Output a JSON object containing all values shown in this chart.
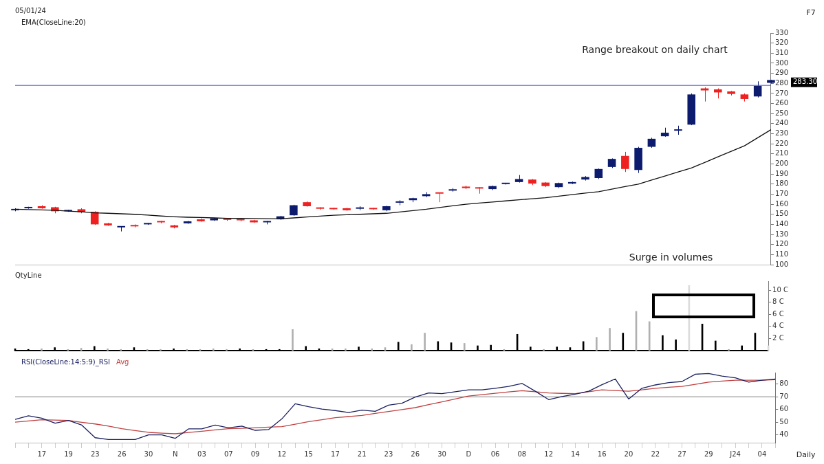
{
  "chart_data": [
    {
      "type": "candlestick",
      "title": "05/01/24",
      "legend": "top left",
      "tick_labels": "y",
      "categories": [
        null,
        null,
        null,
        null,
        null,
        null,
        null,
        null,
        null,
        null,
        null,
        null,
        null,
        null,
        null,
        null,
        null,
        null,
        null,
        null,
        null,
        null,
        null,
        null,
        null,
        null,
        null,
        null,
        null,
        null,
        null,
        null,
        null,
        null,
        null,
        null,
        null,
        null,
        null,
        null,
        null,
        null,
        null,
        null,
        null,
        null,
        null,
        null,
        null,
        null,
        null,
        null,
        null,
        null,
        null,
        null,
        null,
        null
      ],
      "ohlc": [
        [
          154,
          156,
          153,
          155
        ],
        [
          156,
          157.5,
          155.5,
          157
        ],
        [
          158,
          159,
          155.5,
          156
        ],
        [
          157,
          157.5,
          151,
          153
        ],
        [
          153,
          154.5,
          152.5,
          154
        ],
        [
          155,
          156,
          151,
          152
        ],
        [
          152.5,
          153,
          139.5,
          140
        ],
        [
          141,
          141.5,
          138.5,
          139
        ],
        [
          137,
          138,
          133,
          137.5
        ],
        [
          139,
          140,
          137,
          138
        ],
        [
          140,
          141.5,
          139.5,
          141
        ],
        [
          143,
          143.5,
          141,
          142
        ],
        [
          139,
          139.5,
          136,
          137
        ],
        [
          141,
          143.5,
          140.5,
          143
        ],
        [
          145,
          146,
          142.5,
          143
        ],
        [
          144,
          146.5,
          143.5,
          146
        ],
        [
          145,
          145.5,
          143.5,
          144.5
        ],
        [
          145,
          146,
          143,
          144
        ],
        [
          144,
          144.5,
          141.5,
          142
        ],
        [
          142,
          143.5,
          140,
          142.5
        ],
        [
          145,
          148.5,
          144.5,
          148
        ],
        [
          149,
          159.5,
          148.5,
          159
        ],
        [
          162,
          163,
          157.5,
          158
        ],
        [
          156.5,
          157,
          154.5,
          155.5
        ],
        [
          156,
          156.5,
          154.5,
          155
        ],
        [
          156,
          156.5,
          153.5,
          154
        ],
        [
          155.5,
          158,
          154,
          156
        ],
        [
          156,
          156.5,
          154.5,
          155
        ],
        [
          154,
          158.5,
          153,
          158
        ],
        [
          161.5,
          164,
          159,
          162
        ],
        [
          164,
          166.5,
          162,
          166
        ],
        [
          168,
          172,
          167,
          170
        ],
        [
          171,
          171.5,
          162,
          170.5
        ],
        [
          173.5,
          176,
          172.5,
          174
        ],
        [
          177.5,
          178.5,
          175,
          176
        ],
        [
          176,
          177,
          170.5,
          175.5
        ],
        [
          175,
          178.5,
          174,
          178
        ],
        [
          180,
          181,
          179.5,
          180.5
        ],
        [
          182,
          189,
          181.5,
          185
        ],
        [
          184.5,
          185,
          179,
          180.5
        ],
        [
          181.5,
          182,
          177,
          178
        ],
        [
          177,
          181.5,
          176,
          181
        ],
        [
          180.5,
          182.5,
          180,
          182
        ],
        [
          184.5,
          188,
          183.5,
          187
        ],
        [
          186,
          195.5,
          185,
          195
        ],
        [
          197,
          205.5,
          196,
          205
        ],
        [
          208,
          212,
          192,
          195
        ],
        [
          194,
          217,
          191,
          216
        ],
        [
          217,
          226,
          216,
          225
        ],
        [
          227.5,
          236,
          227,
          231
        ],
        [
          233,
          238,
          229,
          233.5
        ],
        [
          239,
          270,
          238.5,
          269
        ],
        [
          275,
          276,
          262,
          273
        ],
        [
          274,
          275,
          265,
          271
        ],
        [
          272,
          272.5,
          268,
          269.5
        ],
        [
          269,
          270,
          262,
          264.5
        ],
        [
          267,
          282,
          266,
          277.5
        ],
        [
          280.5,
          283.5,
          280,
          283.3
        ]
      ],
      "colors": [
        "#0d1b6e",
        "#0d1b6e",
        "#ee2020",
        "#ee2020",
        "#0d1b6e",
        "#ee2020",
        "#ee2020",
        "#ee2020",
        "#0d1b6e",
        "#ee2020",
        "#0d1b6e",
        "#ee2020",
        "#ee2020",
        "#0d1b6e",
        "#ee2020",
        "#0d1b6e",
        "#ee2020",
        "#ee2020",
        "#ee2020",
        "#0d1b6e",
        "#0d1b6e",
        "#0d1b6e",
        "#ee2020",
        "#ee2020",
        "#ee2020",
        "#ee2020",
        "#0d1b6e",
        "#ee2020",
        "#0d1b6e",
        "#0d1b6e",
        "#0d1b6e",
        "#0d1b6e",
        "#ee2020",
        "#0d1b6e",
        "#ee2020",
        "#ee2020",
        "#0d1b6e",
        "#0d1b6e",
        "#0d1b6e",
        "#ee2020",
        "#ee2020",
        "#0d1b6e",
        "#0d1b6e",
        "#0d1b6e",
        "#0d1b6e",
        "#0d1b6e",
        "#ee2020",
        "#0d1b6e",
        "#0d1b6e",
        "#0d1b6e",
        "#0d1b6e",
        "#0d1b6e",
        "#ee2020",
        "#ee2020",
        "#ee2020",
        "#ee2020",
        "#0d1b6e",
        "#0d1b6e"
      ],
      "series": [
        {
          "name": "EMA(CloseLine:20)",
          "type": "line",
          "color": "#111111",
          "marker": "none",
          "line_style": "solid",
          "values": [
            155,
            154.7,
            154.3,
            154,
            153.2,
            152.4,
            151.5,
            151,
            150.5,
            150,
            149.2,
            148.3,
            147.5,
            147.1,
            146.8,
            146.4,
            146,
            145.9,
            145.8,
            145.6,
            145.5,
            146.4,
            147.3,
            148.2,
            149,
            149.5,
            150,
            150.5,
            151,
            152.3,
            153.6,
            155,
            156.7,
            158.4,
            160,
            161.1,
            162.2,
            163.3,
            164.4,
            165.5,
            166.5,
            168,
            169.5,
            171,
            172.5,
            175,
            177.5,
            180,
            184,
            188,
            192,
            196,
            201.5,
            207,
            212.5,
            218,
            226,
            234
          ]
        }
      ],
      "ylim": [
        100,
        330
      ],
      "yticks": [
        100,
        110,
        120,
        130,
        140,
        150,
        160,
        170,
        180,
        190,
        200,
        210,
        220,
        230,
        240,
        250,
        260,
        270,
        280,
        290,
        300,
        310,
        320,
        330
      ],
      "ref_lines": [
        {
          "axis": "y",
          "value": 278,
          "color": "#4a55d0"
        }
      ],
      "annotations": [
        "Range breakout on daily chart",
        "Surge in volumes",
        "F7",
        "283.30"
      ]
    },
    {
      "type": "bar",
      "title": "QtyLine",
      "tick_labels": "y",
      "categories": [
        null,
        null,
        null,
        null,
        null,
        null,
        null,
        null,
        null,
        null,
        null,
        null,
        null,
        null,
        null,
        null,
        null,
        null,
        null,
        null,
        null,
        null,
        null,
        null,
        null,
        null,
        null,
        null,
        null,
        null,
        null,
        null,
        null,
        null,
        null,
        null,
        null,
        null,
        null,
        null,
        null,
        null,
        null,
        null,
        null,
        null,
        null,
        null,
        null,
        null,
        null,
        null,
        null,
        null,
        null,
        null,
        null,
        null
      ],
      "values": [
        0.3,
        0.2,
        0.3,
        0.5,
        0.2,
        0.4,
        0.7,
        0.3,
        0.2,
        0.5,
        0.2,
        0.2,
        0.3,
        0.2,
        0.2,
        0.3,
        0.2,
        0.3,
        0.2,
        0.2,
        0.2,
        3.5,
        0.7,
        0.3,
        0.3,
        0.3,
        0.6,
        0.3,
        0.5,
        1.4,
        1.0,
        2.9,
        1.5,
        1.3,
        1.2,
        0.8,
        0.9,
        0.2,
        2.7,
        0.6,
        0.2,
        0.6,
        0.5,
        1.5,
        2.2,
        3.7,
        2.9,
        6.5,
        4.8,
        2.5,
        1.8,
        10.8,
        4.4,
        1.6,
        0.2,
        0.8,
        2.9,
        0.8
      ],
      "colors": [
        "#000000",
        "#000000",
        "#b0b0b0",
        "#000000",
        "#b0b0b0",
        "#b0b0b0",
        "#000000",
        "#b0b0b0",
        "#b0b0b0",
        "#000000",
        "#b0b0b0",
        "#b0b0b0",
        "#000000",
        "#b0b0b0",
        "#b0b0b0",
        "#b0b0b0",
        "#b0b0b0",
        "#000000",
        "#b0b0b0",
        "#000000",
        "#000000",
        "#b0b0b0",
        "#000000",
        "#000000",
        "#b0b0b0",
        "#b0b0b0",
        "#000000",
        "#b0b0b0",
        "#b0b0b0",
        "#000000",
        "#b0b0b0",
        "#b0b0b0",
        "#000000",
        "#000000",
        "#b0b0b0",
        "#000000",
        "#000000",
        "#b0b0b0",
        "#000000",
        "#000000",
        "#b0b0b0",
        "#000000",
        "#000000",
        "#000000",
        "#b0b0b0",
        "#b0b0b0",
        "#000000",
        "#b0b0b0",
        "#b0b0b0",
        "#000000",
        "#000000",
        "#dcdcdc",
        "#000000",
        "#000000",
        "#b0b0b0",
        "#000000",
        "#000000",
        "#dcdcdc"
      ],
      "ylim": [
        0,
        11.5
      ],
      "yticks": [
        {
          "value": 2,
          "label": "2 C"
        },
        {
          "value": 4,
          "label": "4 C"
        },
        {
          "value": 6,
          "label": "6 C"
        },
        {
          "value": 8,
          "label": "8 C"
        },
        {
          "value": 10,
          "label": "10 C"
        }
      ]
    },
    {
      "type": "line",
      "legend": "top left",
      "marker": "none",
      "line_style": "solid",
      "categories": [
        null,
        null,
        "17",
        null,
        "19",
        null,
        "23",
        null,
        "26",
        null,
        "30",
        null,
        "N",
        null,
        "03",
        null,
        "07",
        null,
        "09",
        null,
        "12",
        null,
        "15",
        null,
        "17",
        null,
        "21",
        null,
        "23",
        null,
        "26",
        null,
        "30",
        null,
        "D",
        null,
        "06",
        null,
        "08",
        null,
        "12",
        null,
        "14",
        null,
        "16",
        null,
        "20",
        null,
        "22",
        null,
        "27",
        null,
        "29",
        null,
        "J24",
        null,
        "04",
        null
      ],
      "series": [
        {
          "name": "RSI(CloseLine:14:5:9)_RSI",
          "color": "#1a2060",
          "values": [
            52.3,
            55.1,
            53.2,
            49.3,
            51.4,
            47.8,
            37.9,
            36.5,
            36.5,
            36.5,
            40.1,
            40.1,
            37.4,
            44.8,
            44.8,
            47.8,
            45.7,
            47,
            43.7,
            44.3,
            52.7,
            64.5,
            62.2,
            60.4,
            59.2,
            57.7,
            59.5,
            58.6,
            63.5,
            64.9,
            69.8,
            73,
            72.5,
            74,
            75.4,
            75.4,
            76.7,
            78.2,
            80.5,
            74.4,
            67.8,
            70.2,
            72.1,
            74.4,
            79.5,
            84,
            68.3,
            76.7,
            79.3,
            81.1,
            82,
            87.7,
            88.3,
            86.2,
            84.9,
            81.5,
            83,
            84
          ]
        },
        {
          "name": "Avg",
          "color": "#c04040",
          "values": [
            50.1,
            51,
            52,
            51.7,
            51.4,
            50,
            48.7,
            47,
            45,
            43.5,
            42.1,
            41.5,
            41,
            42,
            43,
            44,
            45,
            45.3,
            45.7,
            46.2,
            46.6,
            48.5,
            50.5,
            52,
            53.6,
            54.5,
            55.4,
            57,
            58.5,
            60,
            61.5,
            63.9,
            66,
            68.3,
            70.6,
            71.7,
            72.8,
            73.8,
            74.8,
            74,
            73,
            72.7,
            72.5,
            74,
            75.4,
            74.9,
            74.4,
            75.5,
            76.7,
            77.5,
            78.2,
            79.8,
            81.5,
            82.3,
            83,
            83,
            83,
            83.4
          ]
        }
      ],
      "ylim": [
        34,
        89
      ],
      "yticks": [
        40,
        50,
        60,
        70,
        80
      ],
      "ref_lines": [
        {
          "axis": "y",
          "value": 70,
          "color": "#808080"
        }
      ],
      "annotations": [
        "Daily"
      ]
    }
  ]
}
